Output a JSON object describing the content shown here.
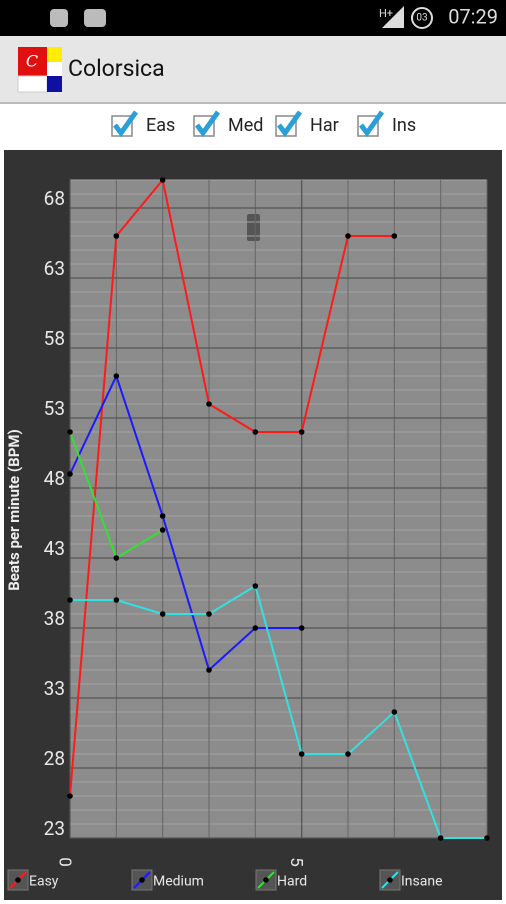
{
  "status_bar": {
    "network": "H+",
    "notification_count": "03",
    "time": "07:29"
  },
  "app_bar": {
    "title": "Colorsica"
  },
  "filters": [
    {
      "label": "Eas",
      "checked": true
    },
    {
      "label": "Med",
      "checked": true
    },
    {
      "label": "Har",
      "checked": true
    },
    {
      "label": "Ins",
      "checked": true
    }
  ],
  "chart_data": {
    "type": "line",
    "y_label": "Beats per minute (BPM)",
    "x": [
      0,
      1,
      2,
      3,
      4,
      5,
      6,
      7,
      8,
      9
    ],
    "series": [
      {
        "name": "Easy",
        "color": "#ff1a1a",
        "values": [
          26,
          66,
          70,
          54,
          52,
          52,
          66,
          66,
          null,
          null
        ]
      },
      {
        "name": "Medium",
        "color": "#1a1aff",
        "values": [
          49,
          56,
          46,
          35,
          38,
          38,
          null,
          null,
          null,
          null
        ]
      },
      {
        "name": "Hard",
        "color": "#33e033",
        "values": [
          52,
          43,
          45,
          null,
          null,
          null,
          null,
          null,
          null,
          null
        ]
      },
      {
        "name": "Insane",
        "color": "#33e0e0",
        "values": [
          40,
          40,
          39,
          39,
          41,
          29,
          29,
          32,
          23,
          23
        ]
      }
    ],
    "xlim": [
      0,
      9
    ],
    "ylim": [
      23,
      70
    ],
    "xticks": [
      0,
      5
    ],
    "yticks": [
      23,
      28,
      33,
      38,
      43,
      48,
      53,
      58,
      63,
      68
    ],
    "grid": true,
    "legend": "bottom"
  }
}
